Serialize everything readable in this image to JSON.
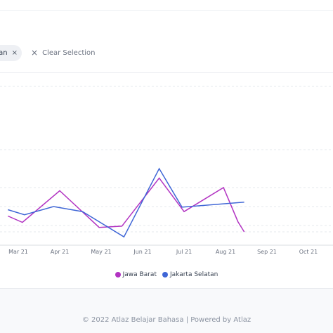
{
  "filter": {
    "chip_label": "tan",
    "chip_remove": "×",
    "clear_icon": "×",
    "clear_label": "Clear Selection"
  },
  "chart_data": {
    "type": "line",
    "categories": [
      "Mar 21",
      "Apr 21",
      "May 21",
      "Jun 21",
      "Jul 21",
      "Aug 21",
      "Sep 21",
      "Oct 21"
    ],
    "ylim": [
      0,
      100
    ],
    "grid": true,
    "legend_placement": "bottom-center",
    "series": [
      {
        "name": "Jawa Barat",
        "color": "#b233c2",
        "points": [
          [
            -0.25,
            45
          ],
          [
            0.1,
            35
          ],
          [
            1.0,
            85
          ],
          [
            1.95,
            27
          ],
          [
            2.5,
            29
          ],
          [
            3.4,
            105
          ],
          [
            4.0,
            52
          ],
          [
            4.95,
            90
          ],
          [
            5.3,
            36
          ],
          [
            5.45,
            20
          ]
        ]
      },
      {
        "name": "Jakarta Selatan",
        "color": "#3f66d6",
        "points": [
          [
            -0.25,
            55
          ],
          [
            0.15,
            47
          ],
          [
            0.85,
            60
          ],
          [
            1.55,
            52
          ],
          [
            2.55,
            12
          ],
          [
            3.4,
            120
          ],
          [
            3.95,
            59
          ],
          [
            5.45,
            67
          ]
        ]
      }
    ]
  },
  "footer": {
    "text": "© 2022 Atlaz Belajar Bahasa | Powered by Atlaz"
  }
}
